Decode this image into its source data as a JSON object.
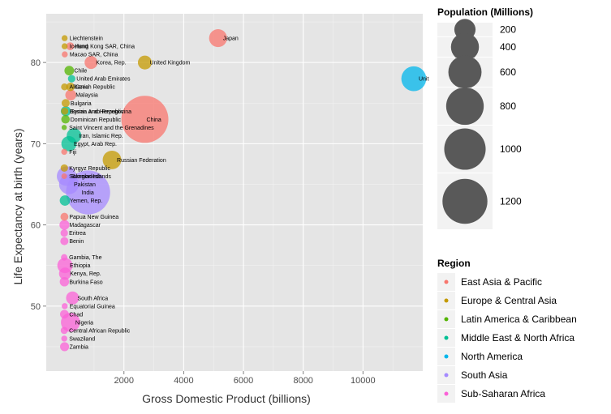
{
  "chart_data": {
    "type": "scatter",
    "title": "",
    "xlabel": "Gross Domestic Product (billions)",
    "ylabel": "Life Expectancy at birth (years)",
    "xlim": [
      -600,
      12000
    ],
    "ylim": [
      42,
      86
    ],
    "x_ticks": [
      2000,
      4000,
      6000,
      8000,
      10000
    ],
    "y_ticks": [
      50,
      60,
      70,
      80
    ],
    "grid": true,
    "size_legend": {
      "title": "Population (Millions)",
      "values": [
        200,
        400,
        600,
        800,
        1000,
        1200
      ]
    },
    "color_legend": {
      "title": "Region",
      "entries": [
        {
          "name": "East Asia & Pacific",
          "color": "#F8766D"
        },
        {
          "name": "Europe & Central Asia",
          "color": "#C49A00"
        },
        {
          "name": "Latin America & Caribbean",
          "color": "#53B400"
        },
        {
          "name": "Middle East & North Africa",
          "color": "#00C094"
        },
        {
          "name": "North America",
          "color": "#00B6EB"
        },
        {
          "name": "South Asia",
          "color": "#A58AFF"
        },
        {
          "name": "Sub-Saharan Africa",
          "color": "#FB61D7"
        }
      ]
    },
    "points": [
      {
        "label": "Japan",
        "x": 5150,
        "y": 83.0,
        "pop": 128,
        "region": 0
      },
      {
        "label": "China",
        "x": 2700,
        "y": 73.0,
        "pop": 1330,
        "region": 0
      },
      {
        "label": "Unit",
        "x": 11700,
        "y": 78.0,
        "pop": 300,
        "region": 4
      },
      {
        "label": "India",
        "x": 800,
        "y": 64.0,
        "pop": 1150,
        "region": 5
      },
      {
        "label": "Liechtenstein",
        "x": 15,
        "y": 83.0,
        "pop": 1,
        "region": 1
      },
      {
        "label": "Iceland",
        "x": 15,
        "y": 82.0,
        "pop": 1,
        "region": 1
      },
      {
        "label": "Hong Kong SAR, China",
        "x": 200,
        "y": 82.0,
        "pop": 7,
        "region": 0
      },
      {
        "label": "Macao SAR, China",
        "x": 20,
        "y": 81.0,
        "pop": 1,
        "region": 0
      },
      {
        "label": "United Kingdom",
        "x": 2700,
        "y": 80.0,
        "pop": 61,
        "region": 1
      },
      {
        "label": "Korea, Rep.",
        "x": 900,
        "y": 80.0,
        "pop": 49,
        "region": 0
      },
      {
        "label": "Chile",
        "x": 170,
        "y": 79.0,
        "pop": 17,
        "region": 2
      },
      {
        "label": "United Arab Emirates",
        "x": 250,
        "y": 78.0,
        "pop": 5,
        "region": 3
      },
      {
        "label": "Albania",
        "x": 12,
        "y": 77.0,
        "pop": 3,
        "region": 1
      },
      {
        "label": "Czech Republic",
        "x": 210,
        "y": 77.0,
        "pop": 10,
        "region": 1
      },
      {
        "label": "Malaysia",
        "x": 220,
        "y": 76.0,
        "pop": 27,
        "region": 0
      },
      {
        "label": "Bulgaria",
        "x": 50,
        "y": 75.0,
        "pop": 8,
        "region": 1
      },
      {
        "label": "Bosnia and Herzegovina",
        "x": 18,
        "y": 74.0,
        "pop": 4,
        "region": 1
      },
      {
        "label": "Syrian Arab Republic",
        "x": 55,
        "y": 74.0,
        "pop": 20,
        "region": 3
      },
      {
        "label": "Dominican Republic",
        "x": 45,
        "y": 73.0,
        "pop": 10,
        "region": 2
      },
      {
        "label": "Saint Vincent and the Grenadines",
        "x": 1,
        "y": 72.0,
        "pop": 0.1,
        "region": 2
      },
      {
        "label": "Egypt, Arab Rep.",
        "x": 160,
        "y": 70.0,
        "pop": 80,
        "region": 3
      },
      {
        "label": "Iran, Islamic Rep.",
        "x": 330,
        "y": 71.0,
        "pop": 72,
        "region": 3
      },
      {
        "label": "Fiji",
        "x": 3,
        "y": 69.0,
        "pop": 1,
        "region": 0
      },
      {
        "label": "Russian Federation",
        "x": 1600,
        "y": 68.0,
        "pop": 141,
        "region": 1
      },
      {
        "label": "Kyrgyz Republic",
        "x": 5,
        "y": 67.0,
        "pop": 5,
        "region": 1
      },
      {
        "label": "Bangladesh",
        "x": 80,
        "y": 66.0,
        "pop": 160,
        "region": 5
      },
      {
        "label": "Solomon Islands",
        "x": 1,
        "y": 66.0,
        "pop": 0.5,
        "region": 0
      },
      {
        "label": "Pakistan",
        "x": 160,
        "y": 65.0,
        "pop": 166,
        "region": 5
      },
      {
        "label": "Yemen, Rep.",
        "x": 26,
        "y": 63.0,
        "pop": 23,
        "region": 3
      },
      {
        "label": "Papua New Guinea",
        "x": 8,
        "y": 61.0,
        "pop": 7,
        "region": 0
      },
      {
        "label": "Madagascar",
        "x": 9,
        "y": 60.0,
        "pop": 19,
        "region": 6
      },
      {
        "label": "Eritrea",
        "x": 2,
        "y": 59.0,
        "pop": 5,
        "region": 6
      },
      {
        "label": "Benin",
        "x": 7,
        "y": 58.0,
        "pop": 8,
        "region": 6
      },
      {
        "label": "Gambia, The",
        "x": 1,
        "y": 56.0,
        "pop": 2,
        "region": 6
      },
      {
        "label": "Ethiopia",
        "x": 26,
        "y": 55.0,
        "pop": 81,
        "region": 6
      },
      {
        "label": "Kenya, Rep.",
        "x": 30,
        "y": 54.0,
        "pop": 39,
        "region": 6
      },
      {
        "label": "Burkina Faso",
        "x": 8,
        "y": 53.0,
        "pop": 15,
        "region": 6
      },
      {
        "label": "Nigeria",
        "x": 210,
        "y": 48.0,
        "pop": 151,
        "region": 6
      },
      {
        "label": "Equatorial Guinea",
        "x": 18,
        "y": 50.0,
        "pop": 1,
        "region": 6
      },
      {
        "label": "South Africa",
        "x": 280,
        "y": 51.0,
        "pop": 49,
        "region": 6
      },
      {
        "label": "Chad",
        "x": 8,
        "y": 49.0,
        "pop": 11,
        "region": 6
      },
      {
        "label": "Central African Republic",
        "x": 2,
        "y": 47.0,
        "pop": 4,
        "region": 6
      },
      {
        "label": "Swaziland",
        "x": 3,
        "y": 46.0,
        "pop": 1,
        "region": 6
      },
      {
        "label": "Zambia",
        "x": 14,
        "y": 45.0,
        "pop": 13,
        "region": 6
      }
    ]
  }
}
